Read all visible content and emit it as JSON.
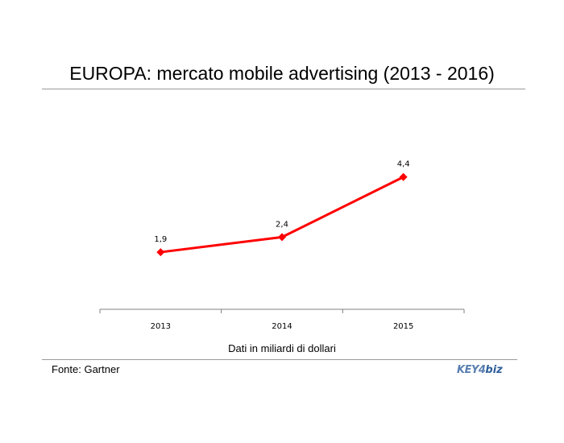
{
  "title": "EUROPA: mercato mobile advertising (2013 - 2016)",
  "footnote": "Dati in miliardi di dollari",
  "source": "Fonte: Gartner",
  "logo": {
    "part1": "KEY",
    "part2": "biz",
    "mark": "4"
  },
  "colors": {
    "series": "#ff0000",
    "axis": "#808080",
    "rule": "#9a9a9a"
  },
  "chart_data": {
    "type": "line",
    "categories": [
      "2013",
      "2014",
      "2015"
    ],
    "series": [
      {
        "values": [
          1.9,
          2.4,
          4.4
        ],
        "labels": [
          "1,9",
          "2,4",
          "4,4"
        ],
        "marker": "diamond"
      }
    ],
    "ylim": [
      0,
      6
    ],
    "grid": false,
    "legend": "none"
  }
}
